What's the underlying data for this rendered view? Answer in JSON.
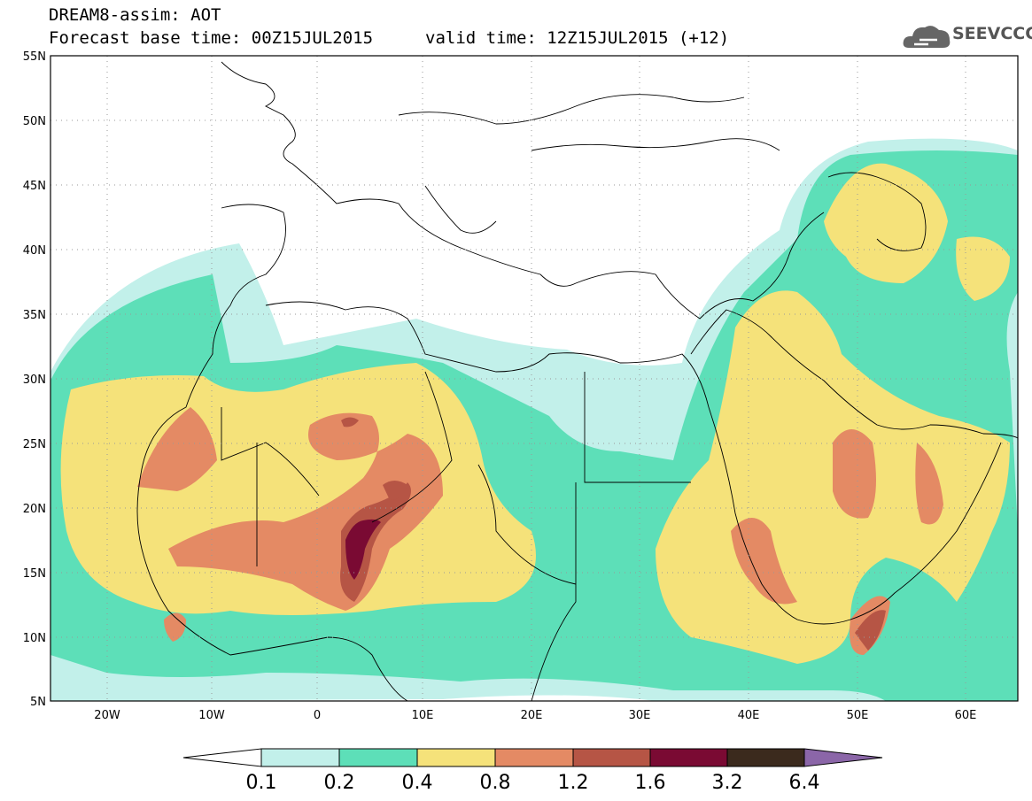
{
  "header": {
    "title": "DREAM8-assim: AOT",
    "base_time": "Forecast base time: 00Z15JUL2015",
    "valid_time": "valid time: 12Z15JUL2015 (+12)",
    "logo_text": "SEEVCCC"
  },
  "map": {
    "lon_range": [
      -25,
      65
    ],
    "lat_range": [
      5,
      55
    ],
    "lat_ticks": [
      "55N",
      "50N",
      "45N",
      "40N",
      "35N",
      "30N",
      "25N",
      "20N",
      "15N",
      "10N",
      "5N"
    ],
    "lon_ticks": [
      "20W",
      "10W",
      "0",
      "10E",
      "20E",
      "30E",
      "40E",
      "50E",
      "60E"
    ]
  },
  "colorbar": {
    "labels": [
      "0.1",
      "0.2",
      "0.4",
      "0.8",
      "1.2",
      "1.6",
      "3.2",
      "6.4"
    ],
    "colors": {
      "c1": "#c2f0ea",
      "c2": "#5ddfb8",
      "c3": "#f5e27a",
      "c4": "#e48a64",
      "c5": "#b65545",
      "c6": "#7a0a33",
      "c7": "#3b2a1d",
      "c8": "#8b66a8"
    }
  }
}
